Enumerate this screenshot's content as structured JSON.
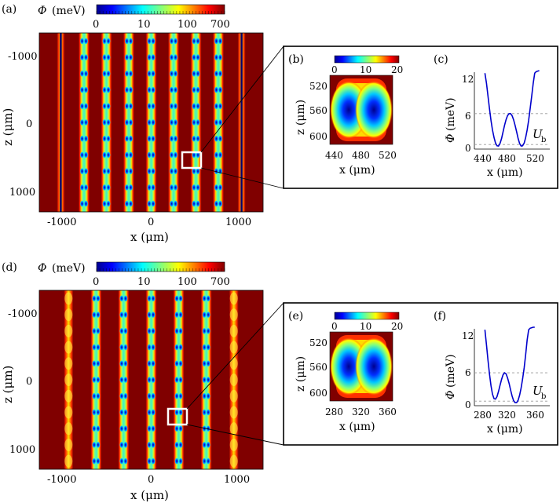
{
  "figure": {
    "panels": {
      "a": "(a)",
      "b": "(b)",
      "c": "(c)",
      "d": "(d)",
      "e": "(e)",
      "f": "(f)"
    },
    "phi_symbol": "Φ",
    "colorbar_unit": "(meV)",
    "colorbar_main_ticks": [
      "0",
      "10",
      "100",
      "700"
    ],
    "colorbar_inset_ticks": [
      "0",
      "10",
      "20"
    ],
    "ub_symbol": "U",
    "ub_subscript": "b",
    "axis_z": "z (μm)",
    "axis_x": "x (μm)",
    "axis_phi": "(meV)",
    "colors": {
      "low": "#00008f",
      "mid": "#80ff80",
      "high": "#800000",
      "inset_curve": "#0000cc"
    }
  },
  "chart_data": [
    {
      "panel": "(a)",
      "type": "heatmap",
      "xlabel": "x (μm)",
      "ylabel": "z (μm)",
      "xticks": [
        "-1000",
        "0",
        "1000"
      ],
      "yticks": [
        "-1000",
        "0",
        "1000"
      ],
      "xlim": [
        -1300,
        1300
      ],
      "ylim": [
        -1300,
        1300
      ],
      "colorbar": {
        "label": "Φ (meV)",
        "ticks": [
          "0",
          "10",
          "100",
          "700"
        ]
      },
      "channels_x": [
        -1050,
        -780,
        -520,
        -260,
        0,
        260,
        520,
        780,
        1050
      ],
      "highlight_box": {
        "x": [
          440,
          520
        ],
        "z": [
          520,
          600
        ]
      }
    },
    {
      "panel": "(b)",
      "type": "heatmap",
      "xlabel": "x (μm)",
      "ylabel": "z (μm)",
      "xticks": [
        "440",
        "480",
        "520"
      ],
      "yticks": [
        "520",
        "560",
        "600"
      ],
      "xlim": [
        430,
        530
      ],
      "ylim": [
        510,
        610
      ],
      "colorbar": {
        "ticks": [
          "0",
          "10",
          "20"
        ]
      }
    },
    {
      "panel": "(c)",
      "type": "line",
      "xlabel": "x (μm)",
      "ylabel": "Φ (meV)",
      "xticks": [
        "440",
        "480",
        "520"
      ],
      "yticks": [
        "0",
        "6",
        "12"
      ],
      "xlim": [
        430,
        530
      ],
      "ylim": [
        -0.5,
        15
      ],
      "ub_level": 6.5,
      "series": [
        {
          "x": [
            444,
            446,
            448,
            450,
            452,
            454,
            456,
            458,
            460,
            462,
            464,
            466,
            468,
            470,
            472,
            474,
            476,
            478,
            480,
            482,
            484,
            486,
            488,
            490,
            492,
            494,
            496,
            498,
            500,
            502,
            504,
            506,
            508,
            510,
            512,
            514,
            516
          ],
          "y": [
            14.5,
            12.5,
            10,
            7.5,
            5.2,
            3.3,
            1.8,
            0.7,
            0.15,
            0.1,
            0.6,
            1.6,
            2.9,
            4.2,
            5.3,
            6.1,
            6.5,
            6.5,
            6.1,
            5.3,
            4.2,
            2.9,
            1.6,
            0.6,
            0.1,
            0.15,
            0.7,
            1.8,
            3.3,
            5.2,
            7.5,
            10,
            12.5,
            14.5,
            14.8,
            14.9,
            15
          ]
        }
      ]
    },
    {
      "panel": "(d)",
      "type": "heatmap",
      "xlabel": "x (μm)",
      "ylabel": "z (μm)",
      "xticks": [
        "-1000",
        "0",
        "1000"
      ],
      "yticks": [
        "-1000",
        "0",
        "1000"
      ],
      "xlim": [
        -1300,
        1300
      ],
      "ylim": [
        -1300,
        1300
      ],
      "colorbar": {
        "label": "Φ (meV)",
        "ticks": [
          "0",
          "10",
          "100",
          "700"
        ]
      },
      "channels_x": [
        -960,
        -640,
        -320,
        0,
        320,
        640,
        960
      ],
      "highlight_box": {
        "x": [
          270,
          370
        ],
        "z": [
          510,
          610
        ]
      }
    },
    {
      "panel": "(e)",
      "type": "heatmap",
      "xlabel": "x (μm)",
      "ylabel": "z (μm)",
      "xticks": [
        "280",
        "320",
        "360"
      ],
      "yticks": [
        "520",
        "560",
        "600"
      ],
      "xlim": [
        270,
        370
      ],
      "ylim": [
        510,
        610
      ],
      "colorbar": {
        "ticks": [
          "0",
          "10",
          "20"
        ]
      }
    },
    {
      "panel": "(f)",
      "type": "line",
      "xlabel": "x (μm)",
      "ylabel": "Φ (meV)",
      "xticks": [
        "280",
        "320",
        "360"
      ],
      "yticks": [
        "0",
        "6",
        "12"
      ],
      "xlim": [
        270,
        370
      ],
      "ylim": [
        -0.5,
        15
      ],
      "ub_level": 6.0,
      "series": [
        {
          "x": [
            284,
            286,
            288,
            290,
            292,
            294,
            296,
            298,
            300,
            302,
            304,
            306,
            308,
            310,
            312,
            314,
            316,
            318,
            320,
            322,
            324,
            326,
            328,
            330,
            332,
            334,
            336,
            338,
            340,
            342,
            344,
            346,
            348,
            350
          ],
          "y": [
            14.5,
            11.5,
            8.5,
            5.8,
            3.5,
            1.8,
            0.9,
            0.8,
            1.3,
            2.3,
            3.5,
            4.7,
            5.6,
            6.0,
            5.8,
            5.0,
            3.9,
            2.6,
            1.4,
            0.5,
            0.1,
            0.1,
            0.6,
            1.6,
            3.0,
            4.8,
            7.0,
            9.6,
            12.5,
            14.5,
            14.8,
            14.9,
            15,
            15
          ]
        }
      ]
    }
  ]
}
